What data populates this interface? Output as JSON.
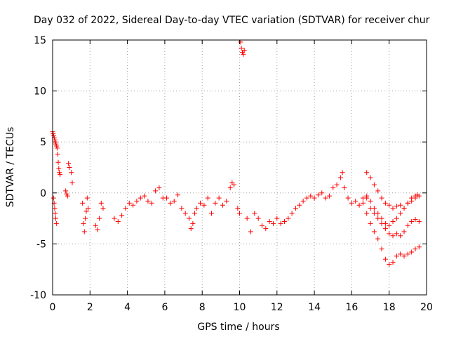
{
  "chart_data": {
    "type": "scatter",
    "title": "Day 032 of 2022, Sidereal Day-to-day VTEC variation (SDTVAR) for receiver chur",
    "xlabel": "GPS time / hours",
    "ylabel": "SDTVAR / TECUs",
    "xlim": [
      0,
      20
    ],
    "ylim": [
      -10,
      15
    ],
    "xticks": [
      0,
      2,
      4,
      6,
      8,
      10,
      12,
      14,
      16,
      18,
      20
    ],
    "yticks": [
      -10,
      -5,
      0,
      5,
      10,
      15
    ],
    "xtick_labels": [
      "0",
      "2",
      "4",
      "6",
      "8",
      "10",
      "12",
      "14",
      "16",
      "18",
      "20"
    ],
    "ytick_labels": [
      "-10",
      "-5",
      "0",
      "5",
      "10",
      "15"
    ],
    "grid": true,
    "marker": "+",
    "color": "#ff0000",
    "series": [
      {
        "name": "SDTVAR",
        "x": [
          0.0,
          0.03,
          0.06,
          0.09,
          0.12,
          0.15,
          0.18,
          0.21,
          0.24,
          0.27,
          0.3,
          0.33,
          0.36,
          0.4,
          0.05,
          0.08,
          0.11,
          0.14,
          0.17,
          0.2,
          0.7,
          0.75,
          0.8,
          0.85,
          0.9,
          1.0,
          1.05,
          1.6,
          1.65,
          1.7,
          1.75,
          1.8,
          1.85,
          1.9,
          2.3,
          2.4,
          2.5,
          2.6,
          2.7,
          3.3,
          3.5,
          3.7,
          3.9,
          4.1,
          4.3,
          4.5,
          4.7,
          4.9,
          5.1,
          5.3,
          5.5,
          5.7,
          5.9,
          6.1,
          6.3,
          6.5,
          6.7,
          6.9,
          7.1,
          7.3,
          7.4,
          7.5,
          7.6,
          7.7,
          7.9,
          8.1,
          8.3,
          8.5,
          8.7,
          8.9,
          9.1,
          9.3,
          9.5,
          9.6,
          9.7,
          9.9,
          10.0,
          10.05,
          10.1,
          10.15,
          10.2,
          10.25,
          10.4,
          10.6,
          10.8,
          11.0,
          11.2,
          11.4,
          11.6,
          11.8,
          12.0,
          12.2,
          12.4,
          12.6,
          12.8,
          13.0,
          13.2,
          13.4,
          13.6,
          13.8,
          14.0,
          14.2,
          14.4,
          14.6,
          14.8,
          15.0,
          15.2,
          15.4,
          15.5,
          15.6,
          15.8,
          16.0,
          16.2,
          16.4,
          16.6,
          16.8,
          17.0,
          17.2,
          17.4,
          17.6,
          17.8,
          18.0,
          18.2,
          18.4,
          18.6,
          18.8,
          19.0,
          19.2,
          19.4,
          19.5,
          19.6,
          16.8,
          17.0,
          17.2,
          17.4,
          17.6,
          17.8,
          18.0,
          18.2,
          18.4,
          18.6,
          18.8,
          19.0,
          19.2,
          19.4,
          19.6,
          16.6,
          16.8,
          17.0,
          17.2,
          17.4,
          17.6,
          17.8,
          18.0,
          18.2,
          18.4,
          18.6,
          18.8,
          19.0,
          19.2,
          19.4,
          19.6,
          16.8,
          17.0,
          17.2,
          17.4,
          17.6,
          17.8,
          18.0,
          18.2,
          18.4,
          18.6,
          18.8,
          19.0,
          19.2,
          19.4
        ],
        "y": [
          6.0,
          5.8,
          5.6,
          5.4,
          5.2,
          5.0,
          4.8,
          4.6,
          4.4,
          3.8,
          3.0,
          2.4,
          2.0,
          1.8,
          -0.5,
          -1.0,
          -1.5,
          -2.0,
          -2.5,
          -3.0,
          0.2,
          -0.1,
          -0.3,
          2.9,
          2.5,
          2.0,
          1.0,
          -1.0,
          -3.0,
          -3.8,
          -2.5,
          -1.8,
          -0.5,
          -1.5,
          -3.2,
          -3.6,
          -2.5,
          -1.0,
          -1.5,
          -2.5,
          -2.8,
          -2.2,
          -1.5,
          -1.0,
          -1.2,
          -0.8,
          -0.5,
          -0.3,
          -0.8,
          -1.0,
          0.2,
          0.5,
          -0.5,
          -0.5,
          -1.0,
          -0.8,
          -0.2,
          -1.5,
          -2.0,
          -2.5,
          -3.5,
          -3.0,
          -2.0,
          -1.5,
          -1.0,
          -1.2,
          -0.5,
          -2.0,
          -1.0,
          -0.5,
          -1.2,
          -0.8,
          0.5,
          1.0,
          0.8,
          -1.5,
          -2.0,
          14.8,
          14.2,
          13.8,
          13.6,
          14.0,
          -2.5,
          -3.8,
          -2.0,
          -2.5,
          -3.2,
          -3.5,
          -2.8,
          -3.0,
          -2.5,
          -3.0,
          -2.8,
          -2.5,
          -2.0,
          -1.5,
          -1.2,
          -0.8,
          -0.5,
          -0.3,
          -0.5,
          -0.2,
          0.0,
          -0.5,
          -0.3,
          0.5,
          0.8,
          1.5,
          2.0,
          0.5,
          -0.5,
          -1.0,
          -0.8,
          -1.2,
          -0.5,
          2.0,
          1.5,
          0.8,
          0.2,
          -0.5,
          -1.0,
          -1.2,
          -1.5,
          -1.3,
          -1.2,
          -1.5,
          -1.0,
          -0.5,
          -0.3,
          -0.2,
          -0.3,
          -0.5,
          -1.5,
          -2.0,
          -2.5,
          -3.0,
          -3.5,
          -4.0,
          -4.2,
          -4.0,
          -4.2,
          -3.8,
          -3.2,
          -2.8,
          -2.6,
          -2.8,
          -1.0,
          -2.0,
          -3.0,
          -3.8,
          -4.5,
          -5.5,
          -6.5,
          -7.0,
          -6.8,
          -6.2,
          -6.0,
          -6.2,
          -6.0,
          -5.8,
          -5.5,
          -5.3,
          -0.3,
          -0.8,
          -1.5,
          -2.0,
          -2.5,
          -3.0,
          -3.2,
          -2.8,
          -2.5,
          -2.0,
          -1.5,
          -1.0,
          -0.8,
          -0.5
        ]
      }
    ]
  }
}
